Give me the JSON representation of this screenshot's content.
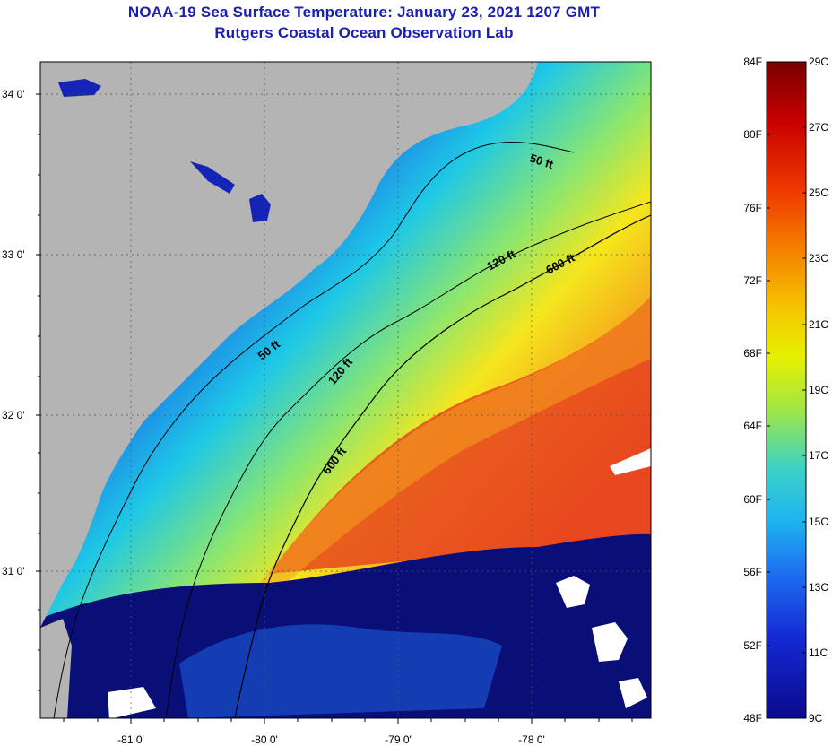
{
  "header": {
    "title_line1": "NOAA-19 Sea Surface Temperature:  January 23, 2021 1207 GMT",
    "title_line2": "Rutgers Coastal Ocean Observation Lab"
  },
  "map": {
    "latitude_labels": [
      "34 0'",
      "33 0'",
      "32 0'",
      "31 0'"
    ],
    "longitude_labels": [
      "-81 0'",
      "-80 0'",
      "-79 0'",
      "-78 0'"
    ],
    "contour_labels": [
      "50 ft",
      "120 ft",
      "600 ft",
      "50 ft",
      "120 ft",
      "600 ft"
    ],
    "colors": {
      "land": "#b4b4b4",
      "deep_blue": "#1424b4",
      "blue": "#1e64e6",
      "cyan": "#1ec8e6",
      "green": "#8ce66e",
      "yellow": "#f5e61e",
      "orange": "#f5a01e",
      "red": "#e6461e",
      "cloud_navy": "#0a0f78"
    }
  },
  "colorbar": {
    "fahrenheit_labels": [
      "84F",
      "80F",
      "76F",
      "72F",
      "68F",
      "64F",
      "60F",
      "56F",
      "52F",
      "48F"
    ],
    "celsius_labels": [
      "29C",
      "27C",
      "25C",
      "23C",
      "21C",
      "19C",
      "17C",
      "15C",
      "13C",
      "11C",
      "9C"
    ],
    "gradient_colors": [
      "#7a0000",
      "#c80000",
      "#f03c00",
      "#f58c00",
      "#f5c800",
      "#e6f000",
      "#a0e646",
      "#3cd2c8",
      "#1eb4f0",
      "#1e6ef0",
      "#1428d2",
      "#0a0a8c"
    ]
  }
}
